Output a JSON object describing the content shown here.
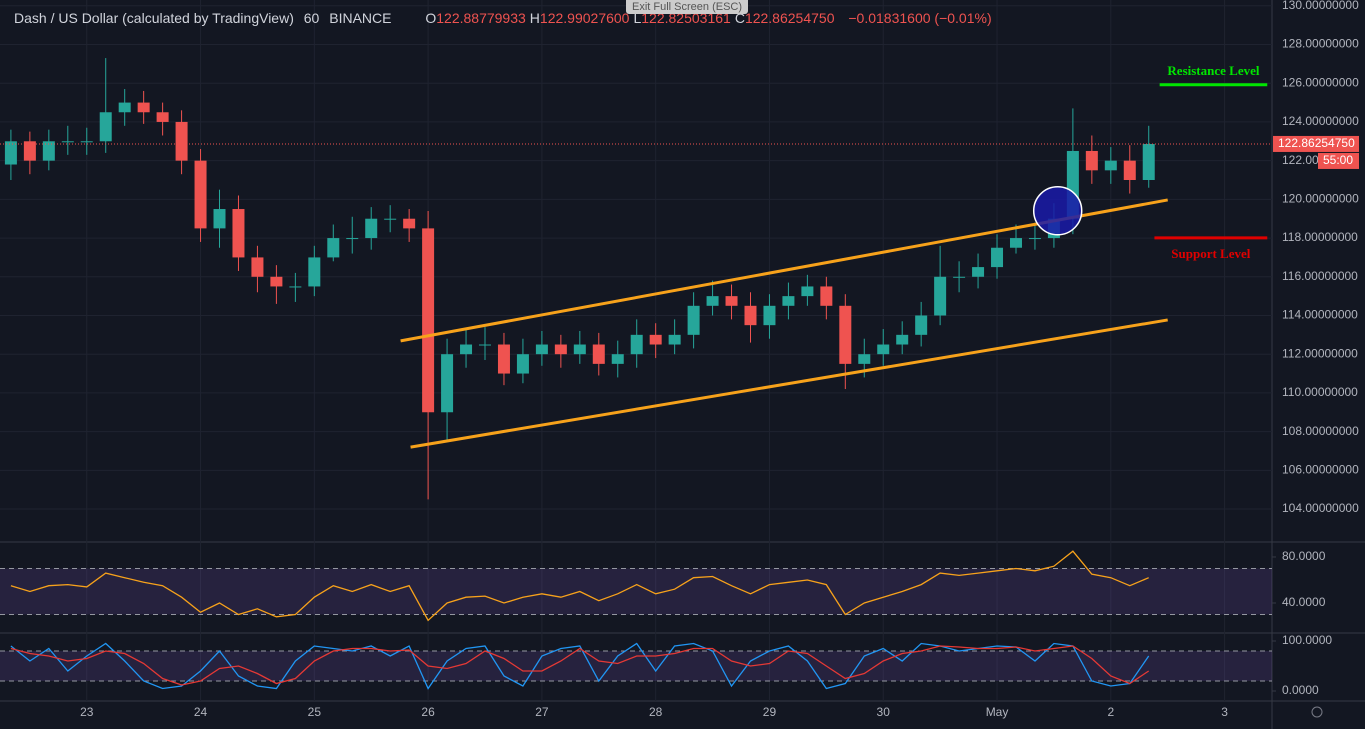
{
  "chart_data": {
    "type": "candlestick",
    "title": "Dash / US Dollar (calculated by TradingView)",
    "interval": "60",
    "exchange": "BINANCE",
    "ohlc_readout": [
      {
        "label": "O",
        "value": "122.88779933"
      },
      {
        "label": "H",
        "value": "122.99027600"
      },
      {
        "label": "L",
        "value": "122.82503161"
      },
      {
        "label": "C",
        "value": "122.86254750"
      }
    ],
    "change": "−0.01831600 (−0.01%)",
    "fullscreen_hint": "Exit Full Screen (ESC)",
    "xlim": [
      -18.3,
      250
    ],
    "xticks": [
      {
        "value": 0,
        "label": "23"
      },
      {
        "value": 24,
        "label": "24"
      },
      {
        "value": 48,
        "label": "25"
      },
      {
        "value": 72,
        "label": "26"
      },
      {
        "value": 96,
        "label": "27"
      },
      {
        "value": 120,
        "label": "28"
      },
      {
        "value": 144,
        "label": "29"
      },
      {
        "value": 168,
        "label": "30"
      },
      {
        "value": 192,
        "label": "May"
      },
      {
        "value": 216,
        "label": "2"
      },
      {
        "value": 240,
        "label": "3"
      }
    ],
    "ylim": [
      102.4,
      130.3
    ],
    "yticks": [
      {
        "value": 104,
        "label": "104.00000000"
      },
      {
        "value": 106,
        "label": "106.00000000"
      },
      {
        "value": 108,
        "label": "108.00000000"
      },
      {
        "value": 110,
        "label": "110.00000000"
      },
      {
        "value": 112,
        "label": "112.00000000"
      },
      {
        "value": 114,
        "label": "114.00000000"
      },
      {
        "value": 116,
        "label": "116.00000000"
      },
      {
        "value": 118,
        "label": "118.00000000"
      },
      {
        "value": 120,
        "label": "120.00000000"
      },
      {
        "value": 122,
        "label": "122.00000000"
      },
      {
        "value": 124,
        "label": "124.00000000"
      },
      {
        "value": 126,
        "label": "126.00000000"
      },
      {
        "value": 128,
        "label": "128.00000000"
      },
      {
        "value": 130,
        "label": "130.00000000"
      }
    ],
    "grid": true,
    "up_color": "#26a69a",
    "down_color": "#ef5350",
    "x": [
      -16,
      -12,
      -8,
      -4,
      0,
      4,
      8,
      12,
      16,
      20,
      24,
      28,
      32,
      36,
      40,
      44,
      48,
      52,
      56,
      60,
      64,
      68,
      72,
      76,
      80,
      84,
      88,
      92,
      96,
      100,
      104,
      108,
      112,
      116,
      120,
      124,
      128,
      132,
      136,
      140,
      144,
      148,
      152,
      156,
      160,
      164,
      168,
      172,
      176,
      180,
      184,
      188,
      192,
      196,
      200,
      204,
      208,
      212,
      216,
      220,
      224
    ],
    "open": [
      121.8,
      123,
      122,
      123,
      123,
      123,
      124.5,
      125,
      124.5,
      124,
      122,
      118.5,
      119.5,
      117,
      116,
      115.5,
      115.5,
      117,
      118,
      118,
      119,
      119,
      118.5,
      109,
      112,
      112.5,
      112.5,
      111,
      112,
      112.5,
      112,
      112.5,
      111.5,
      112,
      113,
      112.5,
      113,
      114.5,
      115,
      114.5,
      113.5,
      114.5,
      115,
      115.5,
      114.5,
      111.5,
      112,
      112.5,
      113,
      114,
      116,
      116,
      116.5,
      117.5,
      118,
      118,
      119,
      122.5,
      121.5,
      122,
      121
    ],
    "high": [
      123.6,
      123.5,
      123.6,
      123.8,
      123.7,
      127.3,
      125.7,
      125.6,
      125,
      124.6,
      122.6,
      120.5,
      120.2,
      117.6,
      116.6,
      116.2,
      117.6,
      118.7,
      119.1,
      119.6,
      119.7,
      119.5,
      119.4,
      112.8,
      113.3,
      113.4,
      113.1,
      112.8,
      113.2,
      113,
      113.2,
      113.1,
      112.7,
      113.8,
      113.6,
      113.8,
      115.2,
      115.8,
      115.6,
      115.2,
      115.1,
      115.7,
      116.1,
      116,
      115.1,
      112.8,
      113.3,
      113.7,
      114.7,
      117.6,
      116.8,
      117.2,
      118.2,
      118.7,
      118.8,
      119.8,
      124.7,
      123.3,
      122.7,
      122.8,
      123.8
    ],
    "low": [
      121,
      121.3,
      121.5,
      122.3,
      122.3,
      122.4,
      123.8,
      123.9,
      123.3,
      121.3,
      117.8,
      117.5,
      116.3,
      115.2,
      114.6,
      114.7,
      115,
      116.8,
      117.2,
      117.4,
      118.3,
      117.8,
      104.5,
      107.5,
      111.3,
      111.7,
      110.4,
      110.5,
      111.4,
      111.3,
      111.5,
      110.9,
      110.8,
      111.3,
      111.8,
      112,
      112.3,
      114,
      113.8,
      112.6,
      112.8,
      113.8,
      114.5,
      113.8,
      110.2,
      110.8,
      111.4,
      112,
      112.4,
      113.5,
      115.2,
      115.4,
      115.9,
      117.2,
      117.4,
      117.5,
      118.2,
      120.8,
      120.8,
      120.3,
      120.6
    ],
    "close": [
      123,
      122,
      123,
      123,
      123,
      124.5,
      125,
      124.5,
      124,
      122,
      118.5,
      119.5,
      117,
      116,
      115.5,
      115.5,
      117,
      118,
      118,
      119,
      119,
      118.5,
      109,
      112,
      112.5,
      112.5,
      111,
      112,
      112.5,
      112,
      112.5,
      111.5,
      112,
      113,
      112.5,
      113,
      114.5,
      115,
      114.5,
      113.5,
      114.5,
      115,
      115.5,
      114.5,
      111.5,
      112,
      112.5,
      113,
      114,
      116,
      116,
      116.5,
      117.5,
      118,
      118,
      119,
      122.5,
      121.5,
      122,
      121,
      122.86
    ],
    "last_price": {
      "value": 122.8625475,
      "label": "122.86254750"
    },
    "countdown": "55:00",
    "trend_lines": [
      {
        "x": [
          66.2,
          228
        ],
        "y": [
          112.69,
          119.97
        ],
        "color": "#f7a21b"
      },
      {
        "x": [
          68.3,
          228
        ],
        "y": [
          107.2,
          113.77
        ],
        "color": "#f7a21b"
      }
    ],
    "levels": [
      {
        "name": "Resistance Level",
        "value": 125.92,
        "x": [
          226.3,
          249
        ],
        "color": "#00e600"
      },
      {
        "name": "Support Level",
        "value": 118.01,
        "x": [
          225.2,
          249
        ],
        "color": "#e00000"
      }
    ],
    "marker": {
      "x": 204.8,
      "y": 119.41,
      "color": "#1a1aa8"
    },
    "indicators": [
      {
        "ylim": [
          14.8,
          90.4
        ],
        "yticks": [
          {
            "value": 80,
            "label": "80.0000"
          },
          {
            "value": 40,
            "label": "40.0000"
          }
        ],
        "bands": [
          70,
          30
        ],
        "series": [
          {
            "color": "#f7a21b",
            "values": [
              55,
              50,
              55,
              56,
              54,
              66,
              62,
              58,
              55,
              45,
              32,
              40,
              30,
              35,
              28,
              30,
              45,
              55,
              50,
              56,
              50,
              55,
              25,
              40,
              45,
              46,
              40,
              45,
              48,
              45,
              50,
              42,
              48,
              56,
              48,
              52,
              62,
              63,
              55,
              48,
              56,
              58,
              60,
              56,
              30,
              40,
              45,
              50,
              56,
              66,
              64,
              66,
              68,
              70,
              68,
              72,
              85,
              65,
              62,
              55,
              62
            ]
          }
        ]
      },
      {
        "ylim": [
          -18,
          114
        ],
        "yticks": [
          {
            "value": 100,
            "label": "100.0000"
          },
          {
            "value": 0,
            "label": "0.0000"
          }
        ],
        "bands": [
          80,
          20
        ],
        "series": [
          {
            "color": "#2196f3",
            "values": [
              90,
              60,
              85,
              40,
              70,
              95,
              60,
              20,
              5,
              10,
              40,
              80,
              30,
              10,
              5,
              60,
              90,
              85,
              80,
              90,
              70,
              90,
              5,
              60,
              85,
              90,
              30,
              10,
              70,
              85,
              90,
              20,
              70,
              95,
              40,
              90,
              95,
              80,
              10,
              60,
              80,
              90,
              60,
              5,
              15,
              70,
              85,
              60,
              95,
              90,
              80,
              85,
              90,
              88,
              60,
              95,
              90,
              20,
              10,
              15,
              70
            ]
          },
          {
            "color": "#e53935",
            "values": [
              85,
              75,
              70,
              60,
              65,
              80,
              75,
              55,
              25,
              12,
              20,
              45,
              50,
              35,
              15,
              25,
              60,
              80,
              85,
              85,
              80,
              82,
              50,
              45,
              55,
              80,
              65,
              40,
              40,
              60,
              85,
              60,
              55,
              70,
              70,
              75,
              85,
              85,
              60,
              50,
              55,
              80,
              75,
              50,
              25,
              35,
              60,
              75,
              80,
              90,
              88,
              85,
              85,
              88,
              80,
              85,
              90,
              65,
              30,
              15,
              40
            ]
          }
        ]
      }
    ]
  }
}
